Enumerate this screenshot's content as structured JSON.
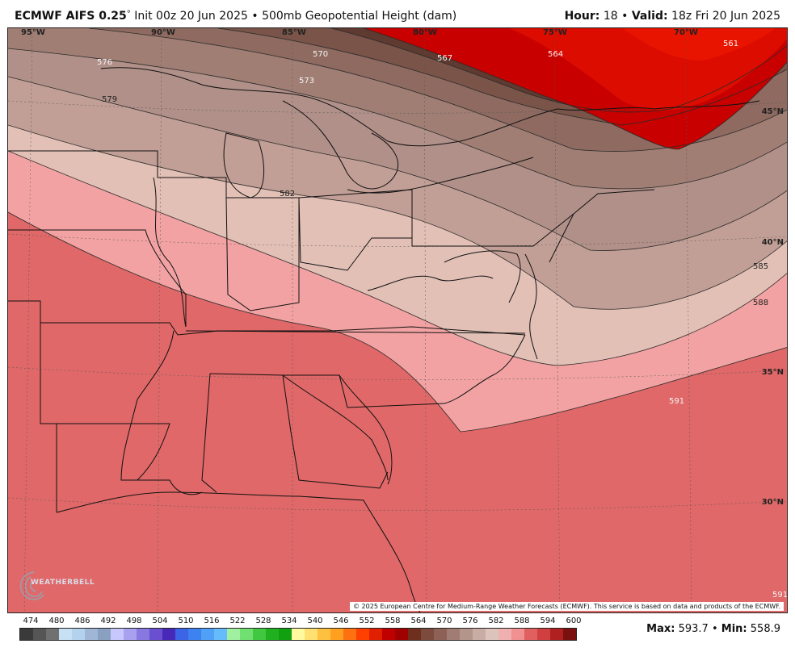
{
  "header": {
    "model": "ECMWF AIFS 0.25",
    "degree": "°",
    "init": "Init 00z 20 Jun 2025",
    "bullet": "•",
    "field": "500mb Geopotential Height (dam)",
    "hour_label": "Hour:",
    "hour": "18",
    "valid_label": "Valid:",
    "valid": "18z Fri 20 Jun 2025"
  },
  "map": {
    "lon_labels": [
      "95°W",
      "90°W",
      "85°W",
      "80°W",
      "75°W",
      "70°W"
    ],
    "lat_labels": [
      "45°N",
      "40°N",
      "35°N",
      "30°N"
    ],
    "contour_labels": [
      "576",
      "570",
      "567",
      "564",
      "561",
      "573",
      "579",
      "582",
      "585",
      "588",
      "591",
      "591"
    ],
    "logo_text": "WEATHERBELL",
    "copyright": "© 2025 European Centre for Medium-Range Weather Forecasts (ECMWF). This service is based on data and products of the ECMWF."
  },
  "colorbar": {
    "labels": [
      "474",
      "480",
      "486",
      "492",
      "498",
      "504",
      "510",
      "516",
      "522",
      "528",
      "534",
      "540",
      "546",
      "552",
      "558",
      "564",
      "570",
      "576",
      "582",
      "588",
      "594",
      "600"
    ],
    "colors": [
      "#3a3a3a",
      "#555555",
      "#707070",
      "#c8e0f4",
      "#b4d2ee",
      "#9fb6d6",
      "#8aa0c0",
      "#c8c8ff",
      "#a9a0f0",
      "#8878e0",
      "#6a50d0",
      "#4828b8",
      "#3c64e6",
      "#3c82f0",
      "#50a0f8",
      "#64bcfc",
      "#a0f0a0",
      "#70e070",
      "#40c840",
      "#20b020",
      "#10a010",
      "#fffaa0",
      "#ffe070",
      "#ffc040",
      "#ffa020",
      "#ff7010",
      "#ff4000",
      "#e02000",
      "#c00000",
      "#a00000",
      "#6e2f1e",
      "#7d4a3e",
      "#8e6156",
      "#a07c72",
      "#b4958c",
      "#c8ada5",
      "#dcc4bc",
      "#f0b0b0",
      "#f09090",
      "#e06060",
      "#d04040",
      "#b02020",
      "#7a1010"
    ],
    "max_label": "Max:",
    "max": "593.7",
    "bullet": "•",
    "min_label": "Min:",
    "min": "558.9"
  }
}
